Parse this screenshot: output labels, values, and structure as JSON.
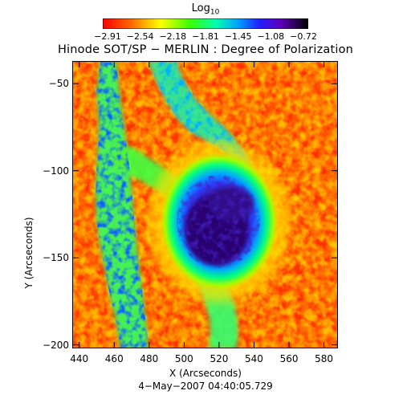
{
  "colorbar": {
    "title_main": "Log",
    "title_sub": "10",
    "ticks": [
      "−2.91",
      "−2.54",
      "−2.18",
      "−1.81",
      "−1.45",
      "−1.08",
      "−0.72"
    ]
  },
  "title": "Hinode SOT/SP − MERLIN : Degree of Polarization",
  "axes": {
    "xlabel": "X (Arcseconds)",
    "ylabel": "Y (Arcseconds)",
    "xticks": [
      "440",
      "460",
      "480",
      "500",
      "520",
      "540",
      "560",
      "580"
    ],
    "yticks": [
      "−50",
      "−100",
      "−150",
      "−200"
    ]
  },
  "timestamp": "4−May−2007 04:40:05.729",
  "colors": {
    "low": "#ff2000",
    "mid": "#00ff60",
    "high": "#000000"
  }
}
